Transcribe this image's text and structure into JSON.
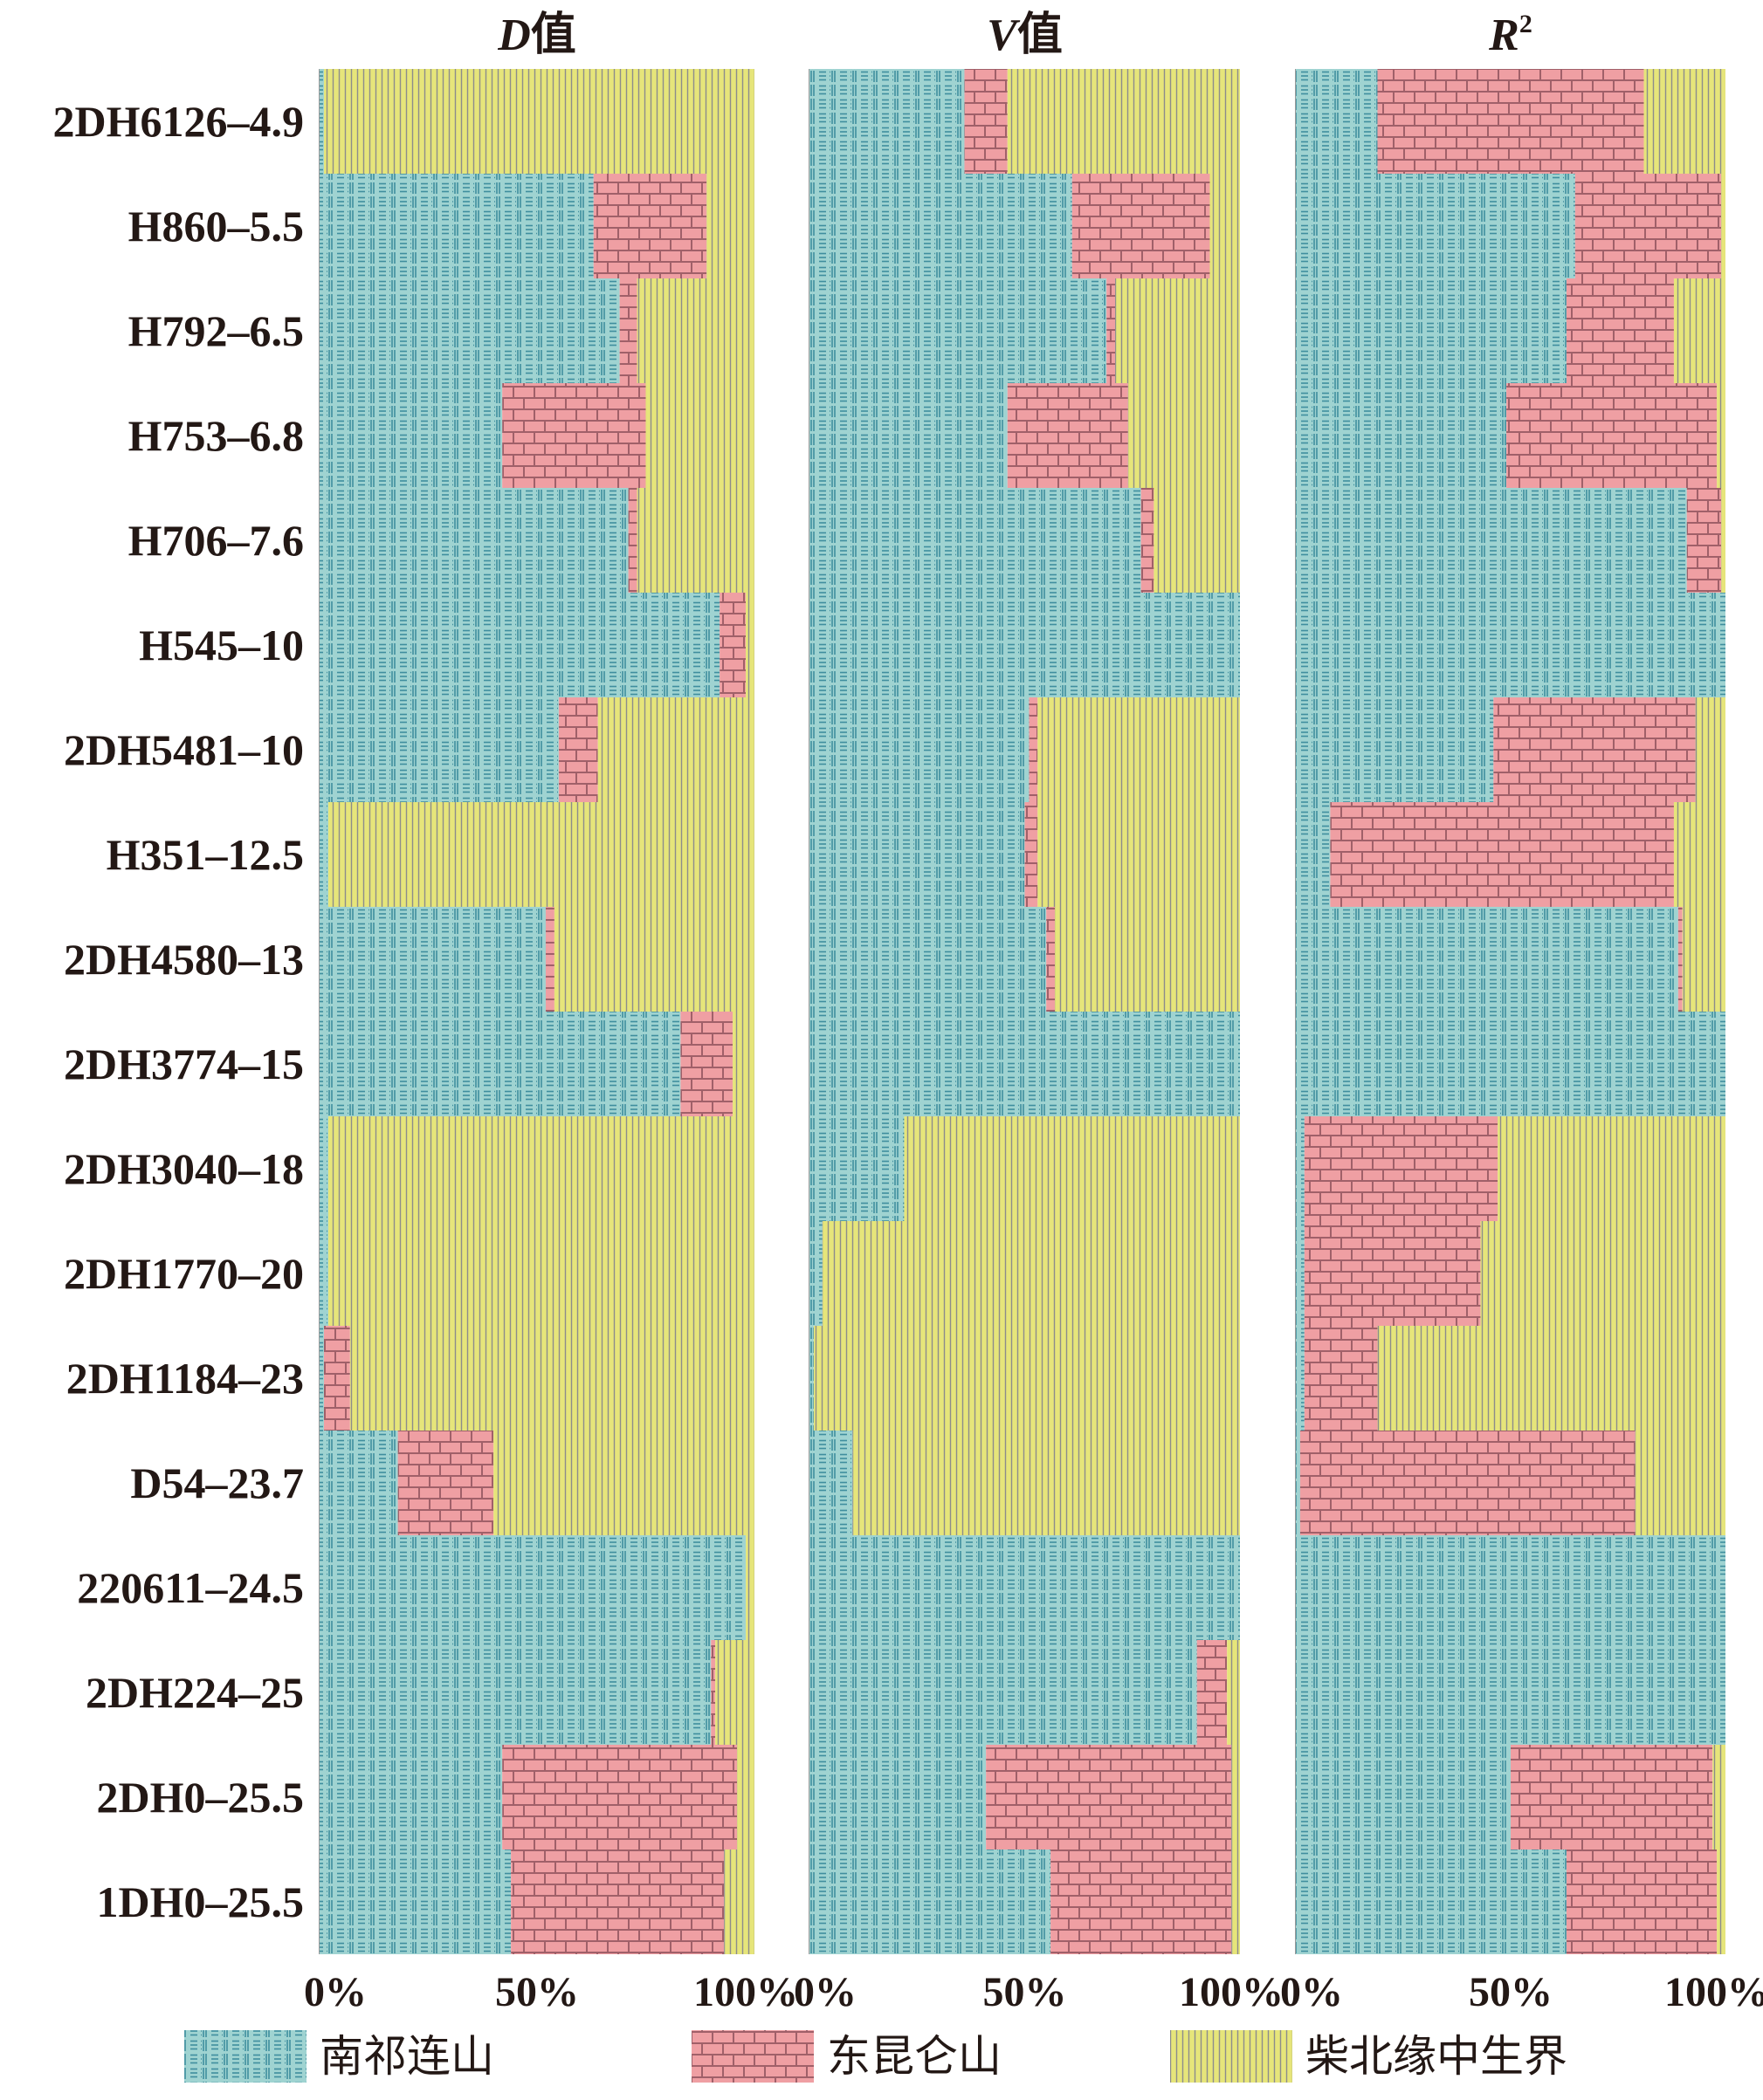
{
  "chart_data": {
    "type": "bar",
    "orientation": "horizontal-stacked-100",
    "panels": [
      {
        "title": "D值",
        "title_italic_part": "D",
        "title_rest": "值",
        "values": [
          [
            1,
            0,
            99
          ],
          [
            63,
            26,
            11
          ],
          [
            69,
            4,
            27
          ],
          [
            42,
            33,
            25
          ],
          [
            71,
            2,
            27
          ],
          [
            92,
            6,
            2
          ],
          [
            55,
            9,
            36
          ],
          [
            2,
            0,
            98
          ],
          [
            52,
            2,
            46
          ],
          [
            83,
            12,
            5
          ],
          [
            2,
            0,
            98
          ],
          [
            2,
            0,
            98
          ],
          [
            1,
            6,
            93
          ],
          [
            18,
            22,
            60
          ],
          [
            98,
            0,
            2
          ],
          [
            90,
            1,
            9
          ],
          [
            42,
            54,
            4
          ],
          [
            44,
            49,
            7
          ]
        ]
      },
      {
        "title": "V值",
        "title_italic_part": "V",
        "title_rest": "值",
        "values": [
          [
            36,
            10,
            54
          ],
          [
            61,
            32,
            7
          ],
          [
            69,
            2,
            29
          ],
          [
            46,
            28,
            26
          ],
          [
            77,
            3,
            20
          ],
          [
            100,
            0,
            0
          ],
          [
            51,
            2,
            47
          ],
          [
            50,
            3,
            47
          ],
          [
            55,
            2,
            43
          ],
          [
            100,
            0,
            0
          ],
          [
            22,
            0,
            78
          ],
          [
            3,
            0,
            97
          ],
          [
            1,
            0,
            99
          ],
          [
            10,
            0,
            90
          ],
          [
            100,
            0,
            0
          ],
          [
            90,
            7,
            3
          ],
          [
            41,
            57,
            2
          ],
          [
            56,
            42,
            2
          ]
        ]
      },
      {
        "title": "R2",
        "title_italic_part": "R",
        "title_sup": "2",
        "values": [
          [
            19,
            62,
            19
          ],
          [
            65,
            34,
            1
          ],
          [
            63,
            25,
            12
          ],
          [
            49,
            49,
            2
          ],
          [
            91,
            8,
            1
          ],
          [
            100,
            0,
            0
          ],
          [
            46,
            47,
            7
          ],
          [
            8,
            80,
            12
          ],
          [
            89,
            1,
            10
          ],
          [
            100,
            0,
            0
          ],
          [
            2,
            45,
            53
          ],
          [
            2,
            41,
            57
          ],
          [
            2,
            17,
            81
          ],
          [
            1,
            78,
            21
          ],
          [
            100,
            0,
            0
          ],
          [
            100,
            0,
            0
          ],
          [
            50,
            47,
            3
          ],
          [
            63,
            35,
            2
          ]
        ]
      }
    ],
    "categories": [
      "2DH6126–4.9",
      "H860–5.5",
      "H792–6.5",
      "H753–6.8",
      "H706–7.6",
      "H545–10",
      "2DH5481–10",
      "H351–12.5",
      "2DH4580–13",
      "2DH3774–15",
      "2DH3040–18",
      "2DH1770–20",
      "2DH1184–23",
      "D54–23.7",
      "220611–24.5",
      "2DH224–25",
      "2DH0–25.5",
      "1DH0–25.5"
    ],
    "series": [
      {
        "name": "南祁连山",
        "color": "#9fd3d1",
        "pattern": "dashes",
        "pattern_color": "#3f8e9e"
      },
      {
        "name": "东昆仑山",
        "color": "#ef9fa3",
        "pattern": "bricks",
        "pattern_color": "#a06069"
      },
      {
        "name": "柴北缘中生界",
        "color": "#e6e57a",
        "pattern": "vertical-lines",
        "pattern_color": "#8c8c8c"
      }
    ],
    "x_tick_labels": [
      "0%",
      "50%",
      "100%"
    ],
    "xlim": [
      0,
      100
    ],
    "unit": "%",
    "legend_position": "bottom"
  }
}
